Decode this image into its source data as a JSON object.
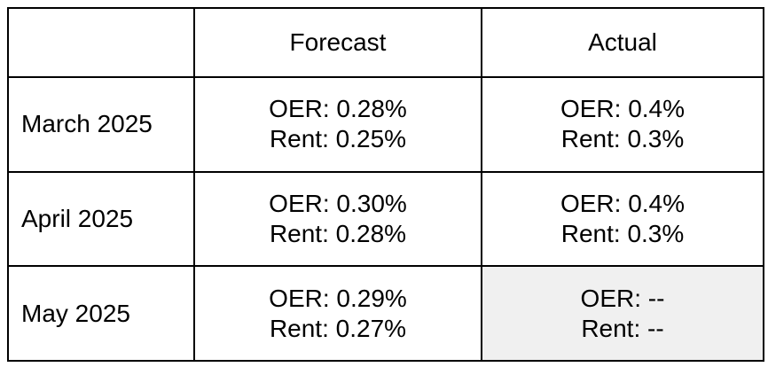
{
  "table": {
    "header": [
      "Forecast",
      "Actual"
    ],
    "rows": [
      {
        "label": "March 2025",
        "forecast": [
          "OER: 0.28%",
          "Rent: 0.25%"
        ],
        "actual": [
          "OER: 0.4%",
          "Rent: 0.3%"
        ]
      },
      {
        "label": "April 2025",
        "forecast": [
          "OER: 0.30%",
          "Rent: 0.28%"
        ],
        "actual": [
          "OER: 0.4%",
          "Rent: 0.3%"
        ]
      },
      {
        "label": "May 2025",
        "forecast": [
          "OER: 0.29%",
          "Rent: 0.27%"
        ],
        "actual": [
          "OER: --",
          "Rent: --"
        ]
      }
    ]
  }
}
